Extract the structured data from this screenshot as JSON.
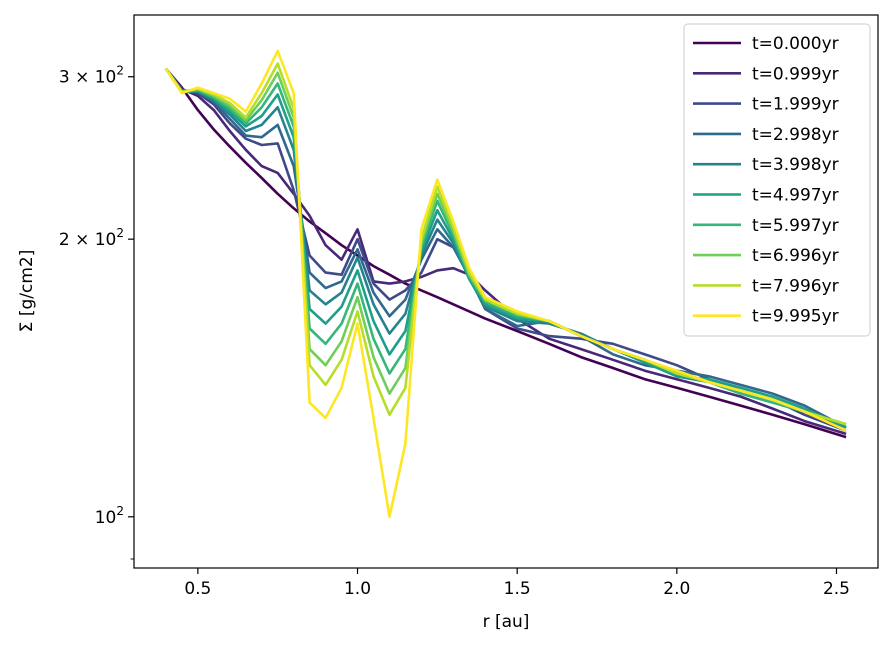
{
  "chart_data": {
    "type": "line",
    "title": "",
    "xlabel": "r [au]",
    "ylabel": "Σ [g/cm2]",
    "xlim": [
      0.3,
      2.63
    ],
    "ylim": [
      88,
      350
    ],
    "yscale": "log",
    "grid": false,
    "legend_position": "top-right",
    "x_ticks": [
      0.5,
      1.0,
      1.5,
      2.0,
      2.5
    ],
    "x_tick_labels": [
      "0.5",
      "1.0",
      "1.5",
      "2.0",
      "2.5"
    ],
    "y_ticks": [
      {
        "value": 100,
        "base": "10",
        "exp": "2",
        "coef": ""
      },
      {
        "value": 200,
        "base": "10",
        "exp": "2",
        "coef": "2 × "
      },
      {
        "value": 300,
        "base": "10",
        "exp": "2",
        "coef": "3 × "
      }
    ],
    "x": [
      0.4,
      0.45,
      0.5,
      0.55,
      0.6,
      0.65,
      0.7,
      0.75,
      0.8,
      0.85,
      0.9,
      0.95,
      1.0,
      1.05,
      1.1,
      1.15,
      1.2,
      1.25,
      1.3,
      1.35,
      1.4,
      1.5,
      1.6,
      1.7,
      1.8,
      1.9,
      2.0,
      2.1,
      2.2,
      2.3,
      2.4,
      2.53
    ],
    "series": [
      {
        "name": "t=0.000yr",
        "color": "#440154",
        "values": [
          306,
          292,
          276,
          263,
          252,
          242,
          233,
          224,
          216,
          209,
          203,
          197,
          192,
          187,
          183,
          179,
          176,
          173,
          170,
          167,
          164,
          159,
          154,
          149,
          145,
          141,
          138,
          135,
          132,
          129,
          126,
          122
        ]
      },
      {
        "name": "t=0.999yr",
        "color": "#482878",
        "values": [
          306,
          291,
          286,
          276,
          262,
          250,
          240,
          236,
          224,
          212,
          197,
          190,
          205,
          180,
          179,
          180,
          182,
          185,
          186,
          183,
          176,
          164,
          156,
          152,
          148,
          144,
          141,
          138,
          135,
          131,
          127,
          123
        ]
      },
      {
        "name": "t=1.999yr",
        "color": "#3e4a89",
        "values": [
          306,
          290,
          288,
          280,
          267,
          257,
          253,
          254,
          226,
          192,
          184,
          183,
          200,
          179,
          172,
          176,
          184,
          200,
          196,
          184,
          168,
          160,
          157,
          156,
          154,
          150,
          146,
          141,
          137,
          134,
          129,
          124
        ]
      },
      {
        "name": "t=2.998yr",
        "color": "#31688e",
        "values": [
          306,
          290,
          289,
          282,
          270,
          259,
          258,
          266,
          240,
          184,
          177,
          180,
          195,
          175,
          165,
          172,
          190,
          205,
          196,
          182,
          168,
          161,
          163,
          157,
          150,
          146,
          144,
          142,
          139,
          136,
          132,
          125
        ]
      },
      {
        "name": "t=3.998yr",
        "color": "#26828e",
        "values": [
          306,
          289,
          289,
          283,
          273,
          262,
          266,
          278,
          250,
          176,
          170,
          175,
          191,
          170,
          158,
          166,
          192,
          210,
          198,
          181,
          169,
          163,
          162,
          158,
          152,
          148,
          142,
          140,
          137,
          134,
          130,
          125
        ]
      },
      {
        "name": "t=4.997yr",
        "color": "#1f9e89",
        "values": [
          306,
          289,
          290,
          284,
          275,
          265,
          272,
          287,
          258,
          168,
          162,
          169,
          185,
          163,
          150,
          159,
          194,
          215,
          200,
          181,
          170,
          164,
          163,
          157,
          152,
          147,
          142,
          141,
          138,
          135,
          131,
          125
        ]
      },
      {
        "name": "t=5.997yr",
        "color": "#35b779",
        "values": [
          306,
          289,
          290,
          285,
          277,
          267,
          278,
          295,
          265,
          160,
          154,
          162,
          179,
          156,
          143,
          152,
          196,
          220,
          202,
          182,
          171,
          165,
          163,
          157,
          152,
          148,
          143,
          140,
          136,
          133,
          130,
          126
        ]
      },
      {
        "name": "t=6.996yr",
        "color": "#6ece58",
        "values": [
          306,
          289,
          291,
          286,
          279,
          269,
          283,
          303,
          271,
          152,
          146,
          155,
          173,
          149,
          136,
          145,
          198,
          224,
          204,
          183,
          172,
          166,
          163,
          157,
          152,
          148,
          143,
          140,
          137,
          134,
          130,
          126
        ]
      },
      {
        "name": "t=7.996yr",
        "color": "#b5de2b",
        "values": [
          306,
          289,
          291,
          287,
          281,
          271,
          288,
          310,
          277,
          146,
          139,
          148,
          167,
          142,
          129,
          138,
          200,
          228,
          206,
          184,
          172,
          166,
          163,
          157,
          152,
          148,
          143,
          140,
          137,
          134,
          130,
          126
        ]
      },
      {
        "name": "t=9.995yr",
        "color": "#fde725",
        "values": [
          306,
          288,
          292,
          288,
          284,
          275,
          295,
          320,
          288,
          133,
          128,
          138,
          162,
          128,
          100,
          120,
          205,
          232,
          209,
          186,
          173,
          167,
          163,
          157,
          152,
          148,
          144,
          140,
          137,
          134,
          130,
          124
        ]
      }
    ]
  }
}
